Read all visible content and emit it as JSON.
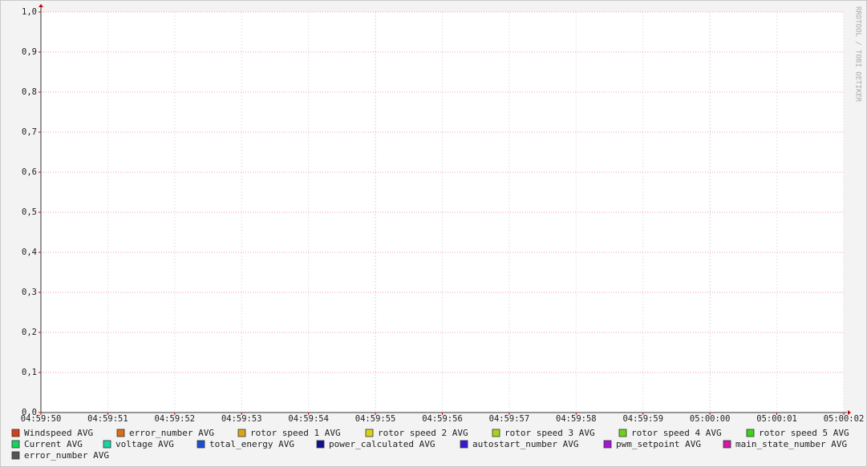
{
  "chart_data": {
    "type": "line",
    "watermark": "RRDTOOL / TOBI OETIKER",
    "categories": [
      "04:59:50",
      "04:59:51",
      "04:59:52",
      "04:59:53",
      "04:59:54",
      "04:59:55",
      "04:59:56",
      "04:59:57",
      "04:59:58",
      "04:59:59",
      "05:00:00",
      "05:00:01",
      "05:00:02"
    ],
    "ylim": [
      0,
      1
    ],
    "yticks": [
      {
        "value": 0,
        "label": "0,0"
      },
      {
        "value": 0.1,
        "label": "0,1"
      },
      {
        "value": 0.2,
        "label": "0,2"
      },
      {
        "value": 0.3,
        "label": "0,3"
      },
      {
        "value": 0.4,
        "label": "0,4"
      },
      {
        "value": 0.5,
        "label": "0,5"
      },
      {
        "value": 0.6,
        "label": "0,6"
      },
      {
        "value": 0.7,
        "label": "0,7"
      },
      {
        "value": 0.8,
        "label": "0,8"
      },
      {
        "value": 0.9,
        "label": "0,9"
      },
      {
        "value": 1,
        "label": "1,0"
      }
    ],
    "grid": true,
    "series": [
      {
        "name": "Windspeed AVG",
        "color": "#d3401a",
        "values": [
          null,
          null,
          null,
          null,
          null,
          null,
          null,
          null,
          null,
          null,
          null,
          null,
          null
        ]
      },
      {
        "name": "error_number AVG",
        "color": "#d96d18",
        "values": [
          null,
          null,
          null,
          null,
          null,
          null,
          null,
          null,
          null,
          null,
          null,
          null,
          null
        ]
      },
      {
        "name": "rotor speed 1 AVG",
        "color": "#d9a518",
        "values": [
          null,
          null,
          null,
          null,
          null,
          null,
          null,
          null,
          null,
          null,
          null,
          null,
          null
        ]
      },
      {
        "name": "rotor speed 2 AVG",
        "color": "#d3d31a",
        "values": [
          null,
          null,
          null,
          null,
          null,
          null,
          null,
          null,
          null,
          null,
          null,
          null,
          null
        ]
      },
      {
        "name": "rotor speed 3 AVG",
        "color": "#a5d318",
        "values": [
          null,
          null,
          null,
          null,
          null,
          null,
          null,
          null,
          null,
          null,
          null,
          null,
          null
        ]
      },
      {
        "name": "rotor speed 4 AVG",
        "color": "#6ed318",
        "values": [
          null,
          null,
          null,
          null,
          null,
          null,
          null,
          null,
          null,
          null,
          null,
          null,
          null
        ]
      },
      {
        "name": "rotor speed 5 AVG",
        "color": "#3ad318",
        "values": [
          null,
          null,
          null,
          null,
          null,
          null,
          null,
          null,
          null,
          null,
          null,
          null,
          null
        ]
      },
      {
        "name": "Current AVG",
        "color": "#18d35a",
        "values": [
          null,
          null,
          null,
          null,
          null,
          null,
          null,
          null,
          null,
          null,
          null,
          null,
          null
        ]
      },
      {
        "name": "voltage AVG",
        "color": "#18d3a5",
        "values": [
          null,
          null,
          null,
          null,
          null,
          null,
          null,
          null,
          null,
          null,
          null,
          null,
          null
        ]
      },
      {
        "name": "total_energy AVG",
        "color": "#1a4ed3",
        "values": [
          null,
          null,
          null,
          null,
          null,
          null,
          null,
          null,
          null,
          null,
          null,
          null,
          null
        ]
      },
      {
        "name": "power_calculated AVG",
        "color": "#101090",
        "values": [
          null,
          null,
          null,
          null,
          null,
          null,
          null,
          null,
          null,
          null,
          null,
          null,
          null
        ]
      },
      {
        "name": "autostart_number AVG",
        "color": "#3a18d3",
        "values": [
          null,
          null,
          null,
          null,
          null,
          null,
          null,
          null,
          null,
          null,
          null,
          null,
          null
        ]
      },
      {
        "name": "pwm_setpoint AVG",
        "color": "#a518d3",
        "values": [
          null,
          null,
          null,
          null,
          null,
          null,
          null,
          null,
          null,
          null,
          null,
          null,
          null
        ]
      },
      {
        "name": "main_state_number AVG",
        "color": "#d318a5",
        "values": [
          null,
          null,
          null,
          null,
          null,
          null,
          null,
          null,
          null,
          null,
          null,
          null,
          null
        ]
      },
      {
        "name": "error_number AVG",
        "color": "#555555",
        "values": [
          null,
          null,
          null,
          null,
          null,
          null,
          null,
          null,
          null,
          null,
          null,
          null,
          null
        ]
      }
    ]
  }
}
